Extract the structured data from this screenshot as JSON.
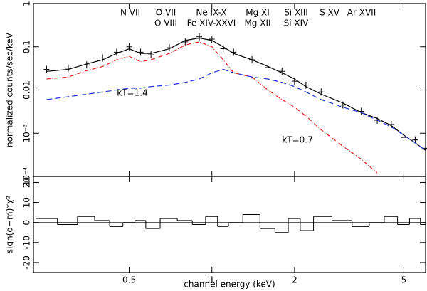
{
  "chart_data": [
    {
      "type": "line",
      "y_label": "normalized counts/sec/keV",
      "xlog": true,
      "ylog": true,
      "xlim": [
        0.224,
        6
      ],
      "ylim": [
        0.0001,
        1
      ],
      "xticks": [
        0.5,
        1,
        2,
        5
      ],
      "yticks": [
        1,
        0.1,
        0.01,
        {
          "value": 0.001,
          "label": "10⁻³"
        },
        {
          "value": 0.0001,
          "label": "10⁻⁴"
        }
      ],
      "annotations": [
        "N VII",
        "O VII",
        "O VIII",
        "Ne IX-X",
        "Fe XIV-XXVI",
        "Mg XI",
        "Mg XII",
        "Si XIII",
        "Si XIV",
        "S XV",
        "Ar XVII",
        "kT=1.4",
        "kT=0.7"
      ],
      "x": [
        0.25,
        0.3,
        0.35,
        0.4,
        0.45,
        0.5,
        0.55,
        0.6,
        0.7,
        0.8,
        0.9,
        1.0,
        1.1,
        1.2,
        1.4,
        1.6,
        1.8,
        2.0,
        2.2,
        2.5,
        3,
        3.5,
        4,
        4.5,
        5,
        5.5,
        6
      ],
      "series": [
        {
          "style": "points",
          "color": "#000000",
          "values": [
            0.03,
            0.032,
            0.038,
            0.055,
            0.075,
            0.1,
            0.075,
            0.065,
            0.095,
            0.13,
            0.17,
            0.15,
            0.09,
            0.075,
            0.05,
            0.033,
            0.027,
            0.016,
            0.013,
            0.009,
            0.0045,
            0.0032,
            0.002,
            0.0016,
            0.0008,
            0.0007,
            0.00045
          ]
        },
        {
          "style": "solid",
          "color": "#000000",
          "values": [
            0.027,
            0.03,
            0.04,
            0.05,
            0.07,
            0.09,
            0.07,
            0.07,
            0.09,
            0.14,
            0.16,
            0.14,
            0.1,
            0.07,
            0.05,
            0.035,
            0.025,
            0.018,
            0.012,
            0.008,
            0.005,
            0.003,
            0.0022,
            0.0015,
            0.0009,
            0.0006,
            0.0004
          ]
        },
        {
          "style": "dashdot",
          "color": "#e02020",
          "values": [
            0.018,
            0.02,
            0.028,
            0.035,
            0.05,
            0.06,
            0.045,
            0.05,
            0.07,
            0.11,
            0.13,
            0.1,
            0.05,
            0.025,
            0.02,
            0.01,
            0.006,
            0.004,
            0.0025,
            0.0012,
            0.0005,
            0.00025,
            0.00012,
            null,
            null,
            null,
            null
          ]
        },
        {
          "style": "dashed",
          "color": "#2030d0",
          "values": [
            0.006,
            0.007,
            0.008,
            0.009,
            0.01,
            0.011,
            0.011,
            0.012,
            0.013,
            0.015,
            0.018,
            0.025,
            0.03,
            0.025,
            0.02,
            0.018,
            0.015,
            0.012,
            0.009,
            0.006,
            0.004,
            0.003,
            0.002,
            0.0014,
            0.0009,
            0.0006,
            0.0004
          ]
        }
      ]
    },
    {
      "type": "step",
      "x_label": "channel energy (keV)",
      "y_label": "sign(d−m)*χ²",
      "xlog": true,
      "ylog": false,
      "xlim": [
        0.224,
        6
      ],
      "ylim": [
        -25,
        23
      ],
      "xticks": [
        0.5,
        1,
        2,
        5
      ],
      "yticks": [
        -20,
        -10,
        0,
        10,
        20
      ],
      "x": [
        0.25,
        0.3,
        0.35,
        0.4,
        0.45,
        0.5,
        0.55,
        0.6,
        0.7,
        0.8,
        0.9,
        1.0,
        1.1,
        1.2,
        1.4,
        1.6,
        1.8,
        2.0,
        2.2,
        2.5,
        3,
        3.5,
        4,
        4.5,
        5,
        5.5,
        6
      ],
      "series": [
        {
          "color": "#000000",
          "values": [
            2,
            -1,
            3,
            1,
            -2,
            0,
            1,
            -3,
            2,
            1,
            -1,
            3,
            -2,
            0,
            4,
            -3,
            -5,
            2,
            -4,
            3,
            1,
            -2,
            0,
            3,
            -1,
            2,
            -1
          ]
        }
      ]
    }
  ]
}
